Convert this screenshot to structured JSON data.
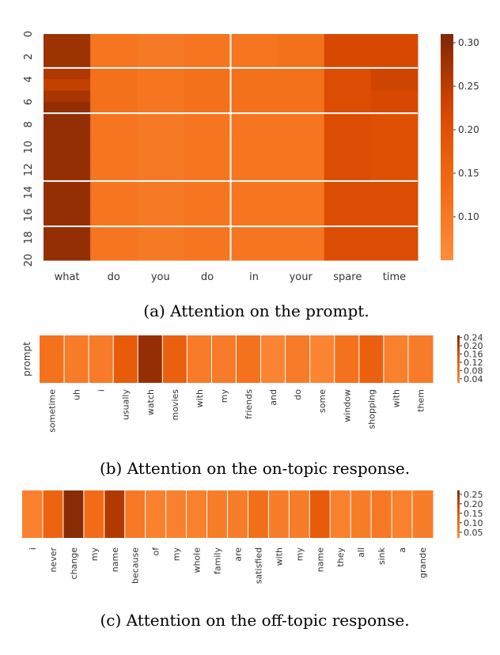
{
  "chart_data": [
    {
      "type": "heatmap",
      "caption": "(a) Attention on the prompt.",
      "x_tick_labels": [
        "what",
        "do",
        "you",
        "do",
        "in",
        "your",
        "spare",
        "time"
      ],
      "y_tick_labels": [
        "0",
        "2",
        "4",
        "6",
        "8",
        "10",
        "12",
        "14",
        "16",
        "18",
        "20"
      ],
      "colorbar_ticks": [
        "0.10",
        "0.15",
        "0.20",
        "0.25",
        "0.30"
      ],
      "colorbar_tick_values": [
        0.1,
        0.15,
        0.2,
        0.25,
        0.3
      ],
      "vmin": 0.05,
      "vmax": 0.31,
      "row_boundaries": [
        3,
        7,
        13,
        17
      ],
      "col_boundaries": [
        4
      ],
      "values": [
        [
          0.28,
          0.11,
          0.1,
          0.11,
          0.11,
          0.12,
          0.22,
          0.22
        ],
        [
          0.28,
          0.11,
          0.1,
          0.11,
          0.11,
          0.12,
          0.22,
          0.22
        ],
        [
          0.28,
          0.11,
          0.1,
          0.11,
          0.11,
          0.12,
          0.22,
          0.22
        ],
        [
          0.26,
          0.12,
          0.11,
          0.12,
          0.12,
          0.12,
          0.21,
          0.23
        ],
        [
          0.24,
          0.12,
          0.11,
          0.12,
          0.12,
          0.12,
          0.21,
          0.23
        ],
        [
          0.27,
          0.12,
          0.11,
          0.12,
          0.12,
          0.12,
          0.21,
          0.22
        ],
        [
          0.29,
          0.12,
          0.11,
          0.12,
          0.12,
          0.12,
          0.21,
          0.22
        ],
        [
          0.29,
          0.11,
          0.1,
          0.11,
          0.11,
          0.11,
          0.21,
          0.2
        ],
        [
          0.29,
          0.11,
          0.1,
          0.11,
          0.11,
          0.11,
          0.21,
          0.2
        ],
        [
          0.29,
          0.11,
          0.1,
          0.11,
          0.11,
          0.11,
          0.21,
          0.2
        ],
        [
          0.29,
          0.11,
          0.1,
          0.11,
          0.11,
          0.11,
          0.21,
          0.2
        ],
        [
          0.29,
          0.11,
          0.1,
          0.11,
          0.11,
          0.11,
          0.21,
          0.2
        ],
        [
          0.29,
          0.11,
          0.1,
          0.11,
          0.11,
          0.11,
          0.21,
          0.2
        ],
        [
          0.29,
          0.11,
          0.1,
          0.11,
          0.11,
          0.11,
          0.21,
          0.21
        ],
        [
          0.29,
          0.11,
          0.1,
          0.11,
          0.11,
          0.11,
          0.21,
          0.21
        ],
        [
          0.29,
          0.11,
          0.1,
          0.11,
          0.11,
          0.11,
          0.21,
          0.21
        ],
        [
          0.29,
          0.11,
          0.1,
          0.11,
          0.11,
          0.11,
          0.21,
          0.21
        ],
        [
          0.29,
          0.11,
          0.1,
          0.11,
          0.11,
          0.11,
          0.21,
          0.21
        ],
        [
          0.29,
          0.11,
          0.1,
          0.11,
          0.11,
          0.11,
          0.21,
          0.21
        ],
        [
          0.29,
          0.11,
          0.1,
          0.11,
          0.11,
          0.11,
          0.21,
          0.21
        ]
      ]
    },
    {
      "type": "heatmap",
      "caption": "(b) Attention on the on-topic response.",
      "y_tick_labels": [
        "prompt"
      ],
      "x_tick_labels": [
        "sometime",
        "uh",
        "i",
        "usually",
        "watch",
        "movies",
        "with",
        "my",
        "friends",
        "and",
        "do",
        "some",
        "window",
        "shopping",
        "with",
        "them"
      ],
      "colorbar_ticks": [
        "0.04",
        "0.08",
        "0.12",
        "0.16",
        "0.20",
        "0.24"
      ],
      "colorbar_tick_values": [
        0.04,
        0.08,
        0.12,
        0.16,
        0.2,
        0.24
      ],
      "vmin": 0.02,
      "vmax": 0.25,
      "values": [
        0.08,
        0.06,
        0.06,
        0.13,
        0.23,
        0.12,
        0.06,
        0.06,
        0.08,
        0.04,
        0.06,
        0.04,
        0.08,
        0.12,
        0.05,
        0.06
      ]
    },
    {
      "type": "heatmap",
      "caption": "(c) Attention on the off-topic response.",
      "x_tick_labels": [
        "i",
        "never",
        "change",
        "my",
        "name",
        "because",
        "of",
        "my",
        "whole",
        "family",
        "are",
        "satisfied",
        "with",
        "my",
        "name",
        "they",
        "all",
        "sink",
        "a",
        "grande"
      ],
      "colorbar_ticks": [
        "0.05",
        "0.10",
        "0.15",
        "0.20",
        "0.25"
      ],
      "colorbar_tick_values": [
        0.05,
        0.1,
        0.15,
        0.2,
        0.25
      ],
      "vmin": 0.02,
      "vmax": 0.27,
      "values": [
        0.05,
        0.12,
        0.26,
        0.1,
        0.22,
        0.07,
        0.05,
        0.05,
        0.05,
        0.06,
        0.06,
        0.09,
        0.06,
        0.06,
        0.14,
        0.05,
        0.06,
        0.07,
        0.05,
        0.06
      ]
    }
  ]
}
